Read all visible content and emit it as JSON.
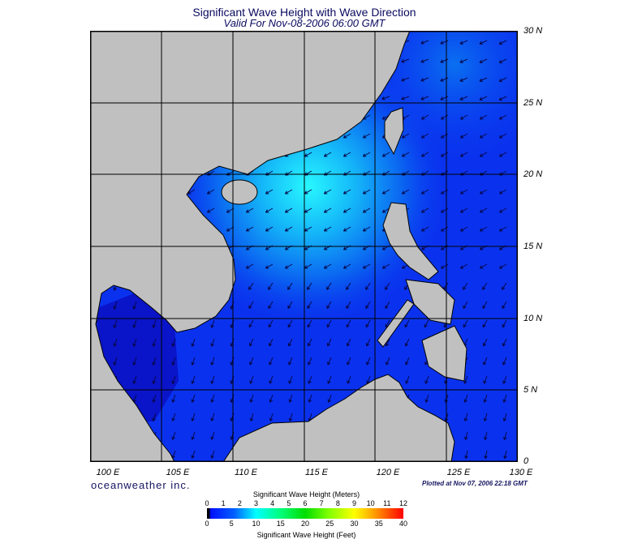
{
  "title": "Significant Wave Height with Wave Direction",
  "subtitle": "Valid For Nov-08-2006 06:00 GMT",
  "lon_labels": [
    "100 E",
    "105 E",
    "110 E",
    "115 E",
    "120 E",
    "125 E",
    "130 E"
  ],
  "lat_labels": [
    "30 N",
    "25 N",
    "20 N",
    "15 N",
    "10 N",
    "5 N",
    "0"
  ],
  "brand": "oceanweather inc.",
  "plotted": "Plotted at Nov 07, 2006 22:18 GMT",
  "colorbar": {
    "title_meters": "Significant Wave Height (Meters)",
    "title_feet": "Significant Wave Height (Feet)",
    "meters": [
      "0",
      "1",
      "2",
      "3",
      "4",
      "5",
      "6",
      "7",
      "8",
      "9",
      "10",
      "11",
      "12"
    ],
    "feet": [
      "0",
      "5",
      "10",
      "15",
      "20",
      "25",
      "30",
      "35",
      "40"
    ]
  },
  "colors": {
    "land": "#c0c0c0",
    "sea_low": "#0a1ef0",
    "sea_mid": "#0a8cf5",
    "sea_high": "#1ef5ff"
  }
}
